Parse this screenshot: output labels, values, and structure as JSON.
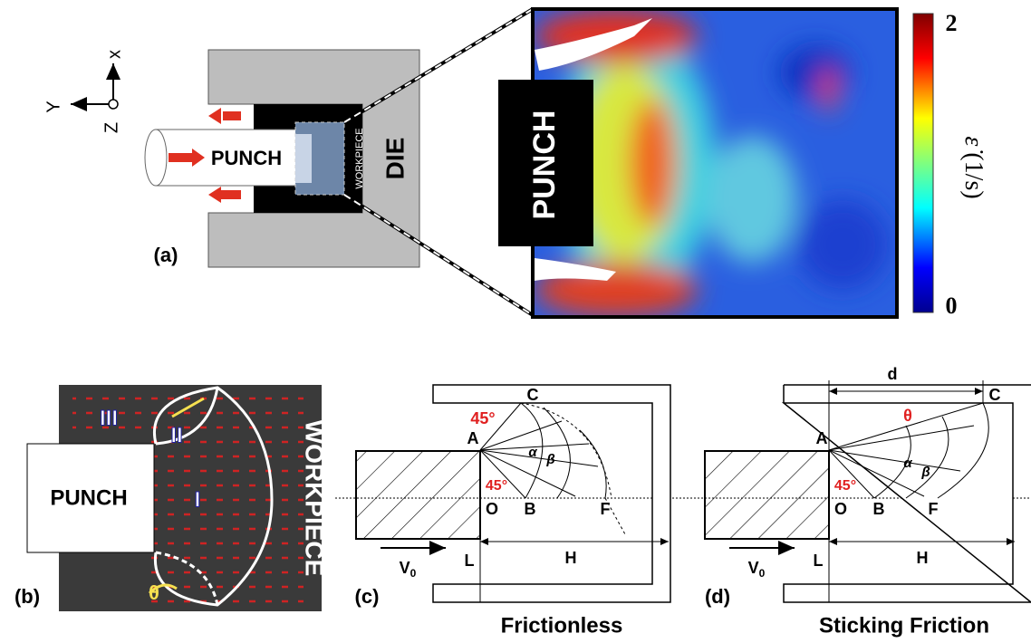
{
  "panel_a": {
    "label": "(a)",
    "axes": {
      "x": "x",
      "y": "Y",
      "z": "Z"
    },
    "punch": "PUNCH",
    "workpiece": "WORKPIECE",
    "die": "DIE"
  },
  "strain_map": {
    "punch": "PUNCH",
    "colorbar": {
      "max": "2",
      "min": "0",
      "symbol": "ε̇",
      "unit": "(1/s)"
    }
  },
  "panel_b": {
    "label": "(b)",
    "punch": "PUNCH",
    "workpiece": "WORKPIECE",
    "zones": [
      "III",
      "II",
      "I"
    ],
    "angle": "θ"
  },
  "panel_c": {
    "label": "(c)",
    "caption": "Frictionless",
    "points": {
      "A": "A",
      "B": "B",
      "C": "C",
      "F": "F",
      "O": "O",
      "L": "L"
    },
    "angle_top": "45°",
    "angle_bottom": "45°",
    "alpha": "α",
    "beta": "β",
    "length": "H",
    "velocity": {
      "symbol": "V",
      "subscript": "0"
    }
  },
  "panel_d": {
    "label": "(d)",
    "caption": "Sticking Friction",
    "points": {
      "A": "A",
      "B": "B",
      "C": "C",
      "F": "F",
      "O": "O",
      "L": "L"
    },
    "angle_top": "θ",
    "angle_bottom": "45°",
    "alpha": "α",
    "beta": "β",
    "length": "H",
    "width": "d",
    "velocity": {
      "symbol": "V",
      "subscript": "0"
    }
  }
}
